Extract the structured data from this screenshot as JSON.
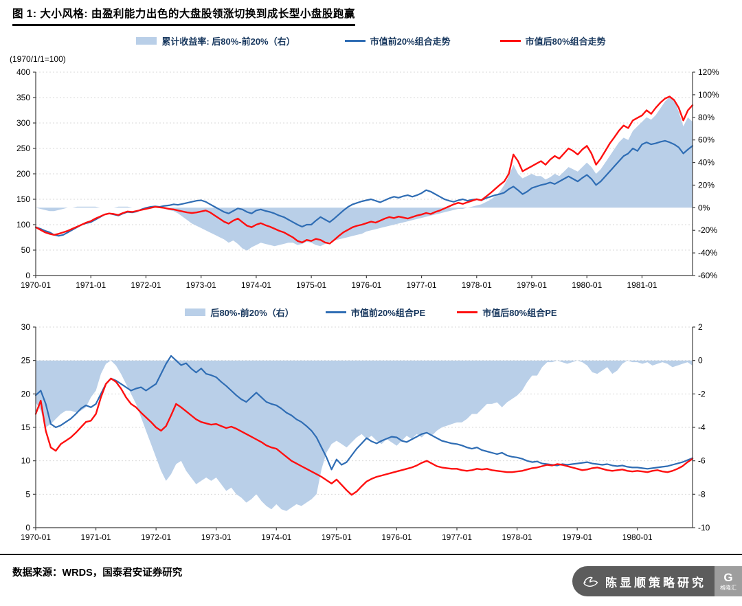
{
  "title": {
    "text": "图 1:  大小风格:  由盈利能力出色的大盘股领涨切换到成长型小盘股跑赢"
  },
  "footer": {
    "source": "数据来源：WRDS，国泰君安证券研究"
  },
  "watermark": {
    "text": "陈显顺策略研究",
    "logo": "格隆汇",
    "logo_initial": "G"
  },
  "colors": {
    "area": "#b9cfe8",
    "blue": "#2f6db4",
    "red": "#fe1010",
    "legend_text": "#17375e",
    "axis": "#3f3f3f",
    "grid": "#d9d9d9"
  },
  "chart_data": [
    {
      "type": "line+area",
      "axis_note": "(1970/1/1=100)",
      "x_unit": "month",
      "x_labels": [
        "1970-01",
        "1971-01",
        "1972-01",
        "1973-01",
        "1974-01",
        "1975-01",
        "1976-01",
        "1977-01",
        "1978-01",
        "1979-01",
        "1980-01",
        "1981-01"
      ],
      "left_axis": {
        "min": 0,
        "max": 400,
        "step": 50
      },
      "right_axis": {
        "min": -60,
        "max": 120,
        "step": 20,
        "suffix": "%"
      },
      "legend": [
        {
          "swatch": "area",
          "color_key": "area",
          "label": "累计收益率: 后80%-前20%（右）"
        },
        {
          "swatch": "line",
          "color_key": "blue",
          "label": "市值前20%组合走势"
        },
        {
          "swatch": "line",
          "color_key": "red",
          "label": "市值后80%组合走势"
        }
      ],
      "series": [
        {
          "name": "累计收益率: 后80%-前20%（右）",
          "axis": "right",
          "kind": "area",
          "color_key": "area",
          "values": [
            0,
            -1,
            -2,
            -3,
            -3,
            -2,
            -1,
            0,
            0,
            1,
            1,
            1,
            1,
            1,
            0,
            0,
            0,
            0,
            1,
            1,
            1,
            0,
            0,
            0,
            0,
            0,
            0,
            0,
            -1,
            -2,
            -3,
            -5,
            -8,
            -11,
            -14,
            -16,
            -18,
            -20,
            -22,
            -24,
            -26,
            -28,
            -31,
            -29,
            -32,
            -36,
            -38,
            -35,
            -33,
            -31,
            -32,
            -33,
            -34,
            -33,
            -32,
            -31,
            -31,
            -33,
            -32,
            -30,
            -31,
            -33,
            -34,
            -32,
            -30,
            -29,
            -28,
            -27,
            -26,
            -25,
            -24,
            -23,
            -21,
            -20,
            -19,
            -18,
            -17,
            -16,
            -15,
            -14,
            -13,
            -12,
            -11,
            -10,
            -9,
            -8,
            -7,
            -6,
            -5,
            -4,
            -3,
            -2,
            -1,
            -1,
            0,
            1,
            2,
            3,
            5,
            7,
            10,
            14,
            20,
            28,
            38,
            30,
            26,
            28,
            30,
            28,
            28,
            25,
            27,
            30,
            28,
            32,
            36,
            34,
            32,
            36,
            40,
            36,
            30,
            34,
            40,
            46,
            52,
            58,
            62,
            60,
            68,
            72,
            76,
            80,
            78,
            82,
            88,
            94,
            98,
            96,
            85,
            72,
            80,
            76
          ]
        },
        {
          "name": "市值前20%组合走势",
          "axis": "left",
          "kind": "line",
          "color_key": "blue",
          "values": [
            95,
            92,
            88,
            85,
            80,
            78,
            80,
            85,
            90,
            95,
            100,
            103,
            105,
            110,
            115,
            120,
            122,
            120,
            118,
            122,
            125,
            124,
            126,
            130,
            133,
            135,
            136,
            135,
            137,
            138,
            140,
            139,
            141,
            143,
            145,
            147,
            148,
            145,
            140,
            135,
            130,
            125,
            122,
            127,
            132,
            130,
            125,
            122,
            128,
            130,
            127,
            125,
            122,
            118,
            115,
            110,
            105,
            100,
            96,
            100,
            100,
            108,
            115,
            110,
            105,
            112,
            120,
            128,
            135,
            140,
            143,
            146,
            148,
            150,
            147,
            144,
            148,
            152,
            155,
            153,
            156,
            158,
            155,
            158,
            162,
            168,
            165,
            160,
            155,
            150,
            147,
            145,
            148,
            150,
            147,
            149,
            150,
            148,
            152,
            155,
            158,
            160,
            163,
            170,
            175,
            168,
            160,
            165,
            172,
            175,
            178,
            180,
            183,
            180,
            185,
            190,
            195,
            190,
            185,
            192,
            198,
            190,
            178,
            185,
            195,
            205,
            215,
            225,
            235,
            240,
            250,
            245,
            258,
            262,
            258,
            260,
            263,
            265,
            262,
            258,
            252,
            240,
            248,
            255
          ]
        },
        {
          "name": "市值后80%组合走势",
          "axis": "left",
          "kind": "line",
          "color_key": "red",
          "values": [
            95,
            90,
            85,
            82,
            80,
            82,
            85,
            88,
            92,
            96,
            100,
            104,
            107,
            112,
            116,
            120,
            122,
            121,
            119,
            123,
            126,
            125,
            127,
            129,
            131,
            133,
            135,
            134,
            133,
            131,
            130,
            128,
            126,
            124,
            123,
            124,
            126,
            128,
            124,
            118,
            112,
            106,
            102,
            108,
            112,
            105,
            98,
            95,
            100,
            103,
            99,
            96,
            92,
            88,
            85,
            80,
            75,
            68,
            65,
            70,
            68,
            72,
            70,
            65,
            63,
            70,
            78,
            85,
            90,
            95,
            98,
            100,
            103,
            106,
            104,
            108,
            112,
            115,
            113,
            116,
            114,
            112,
            115,
            118,
            120,
            123,
            121,
            125,
            128,
            132,
            136,
            140,
            143,
            141,
            144,
            147,
            150,
            148,
            155,
            162,
            170,
            178,
            185,
            200,
            238,
            225,
            205,
            210,
            215,
            220,
            225,
            218,
            228,
            235,
            230,
            240,
            250,
            245,
            238,
            248,
            255,
            240,
            218,
            230,
            245,
            260,
            272,
            285,
            295,
            290,
            305,
            310,
            315,
            325,
            318,
            330,
            340,
            348,
            352,
            345,
            330,
            305,
            325,
            335
          ]
        }
      ]
    },
    {
      "type": "line+area",
      "axis_note": "",
      "x_unit": "month",
      "x_labels": [
        "1970-01",
        "1971-01",
        "1972-01",
        "1973-01",
        "1974-01",
        "1975-01",
        "1976-01",
        "1977-01",
        "1978-01",
        "1979-01",
        "1980-01"
      ],
      "left_axis": {
        "min": 0,
        "max": 30,
        "step": 5
      },
      "right_axis": {
        "min": -10,
        "max": 2,
        "step": 2,
        "suffix": ""
      },
      "legend": [
        {
          "swatch": "area",
          "color_key": "area",
          "label": "后80%-前20%（右）"
        },
        {
          "swatch": "line",
          "color_key": "blue",
          "label": "市值前20%组合PE"
        },
        {
          "swatch": "line",
          "color_key": "red",
          "label": "市值后80%组合PE"
        }
      ],
      "series": [
        {
          "name": "后80%-前20%（右）",
          "axis": "right",
          "kind": "area",
          "color_key": "area",
          "values": [
            -2.5,
            -3.0,
            -4.0,
            -3.8,
            -3.5,
            -3.2,
            -3.0,
            -3.0,
            -3.1,
            -3.0,
            -2.8,
            -2.2,
            -1.8,
            -0.8,
            -0.2,
            0.0,
            -0.3,
            -0.8,
            -1.4,
            -2.0,
            -2.6,
            -3.4,
            -4.2,
            -5.0,
            -5.8,
            -6.6,
            -7.2,
            -6.8,
            -6.2,
            -6.0,
            -6.6,
            -7.0,
            -7.4,
            -7.2,
            -7.0,
            -7.2,
            -7.0,
            -7.4,
            -7.8,
            -7.6,
            -8.0,
            -8.2,
            -8.5,
            -8.3,
            -8.0,
            -8.4,
            -8.7,
            -8.9,
            -8.6,
            -8.9,
            -9.0,
            -8.8,
            -8.6,
            -8.7,
            -8.5,
            -8.3,
            -8.0,
            -6.5,
            -5.5,
            -5.0,
            -4.8,
            -5.0,
            -5.2,
            -4.9,
            -4.6,
            -4.4,
            -4.7,
            -4.5,
            -4.8,
            -5.0,
            -4.7,
            -4.9,
            -5.1,
            -4.8,
            -4.5,
            -4.7,
            -4.4,
            -4.6,
            -4.3,
            -4.5,
            -4.2,
            -4.0,
            -3.9,
            -3.8,
            -3.7,
            -3.7,
            -3.5,
            -3.2,
            -3.2,
            -2.9,
            -2.6,
            -2.6,
            -2.5,
            -2.8,
            -2.5,
            -2.3,
            -2.1,
            -1.8,
            -1.3,
            -0.9,
            -0.9,
            -0.4,
            -0.1,
            -0.1,
            0.0,
            -0.1,
            -0.2,
            -0.1,
            0.0,
            -0.1,
            -0.3,
            -0.7,
            -0.8,
            -0.6,
            -0.4,
            -0.8,
            -0.6,
            -0.2,
            0.0,
            -0.1,
            -0.1,
            -0.2,
            -0.1,
            -0.3,
            -0.2,
            -0.1,
            -0.2,
            -0.4,
            -0.3,
            -0.2,
            -0.1,
            -0.3
          ]
        },
        {
          "name": "市值前20%组合PE",
          "axis": "left",
          "kind": "line",
          "color_key": "blue",
          "values": [
            19.8,
            20.5,
            18.5,
            15.5,
            15.0,
            15.3,
            15.8,
            16.3,
            17.0,
            17.8,
            18.3,
            18.0,
            18.5,
            20.0,
            21.5,
            22.3,
            22.0,
            21.5,
            21.0,
            20.5,
            20.8,
            21.0,
            20.5,
            21.0,
            21.5,
            23.0,
            24.5,
            25.7,
            25.0,
            24.3,
            24.6,
            23.8,
            23.2,
            23.8,
            23.0,
            22.8,
            22.5,
            21.8,
            21.2,
            20.5,
            19.8,
            19.2,
            18.8,
            19.5,
            20.2,
            19.5,
            18.8,
            18.5,
            18.3,
            17.8,
            17.2,
            16.8,
            16.2,
            15.8,
            15.2,
            14.5,
            13.5,
            12.0,
            10.5,
            8.7,
            10.2,
            9.4,
            9.8,
            10.8,
            11.8,
            12.6,
            13.4,
            12.9,
            12.6,
            13.0,
            13.3,
            13.6,
            13.5,
            13.0,
            12.8,
            13.2,
            13.6,
            14.0,
            14.2,
            13.8,
            13.4,
            13.0,
            12.8,
            12.6,
            12.5,
            12.3,
            12.0,
            11.8,
            12.0,
            11.6,
            11.4,
            11.2,
            11.0,
            11.2,
            10.8,
            10.6,
            10.5,
            10.3,
            10.0,
            9.8,
            9.9,
            9.6,
            9.5,
            9.4,
            9.3,
            9.5,
            9.4,
            9.5,
            9.6,
            9.7,
            9.8,
            9.6,
            9.5,
            9.4,
            9.5,
            9.3,
            9.2,
            9.3,
            9.1,
            9.0,
            9.0,
            8.9,
            8.8,
            8.9,
            9.0,
            9.1,
            9.2,
            9.4,
            9.6,
            9.8,
            10.1,
            10.4
          ]
        },
        {
          "name": "市值后80%组合PE",
          "axis": "left",
          "kind": "line",
          "color_key": "red",
          "values": [
            17.0,
            19.0,
            14.5,
            12.0,
            11.5,
            12.5,
            13.0,
            13.5,
            14.2,
            15.0,
            15.8,
            16.0,
            17.0,
            19.5,
            21.5,
            22.3,
            21.8,
            20.8,
            19.5,
            18.5,
            18.0,
            17.2,
            16.5,
            15.8,
            15.0,
            14.5,
            15.2,
            16.8,
            18.5,
            18.0,
            17.4,
            16.8,
            16.2,
            15.8,
            15.6,
            15.4,
            15.5,
            15.2,
            14.9,
            15.1,
            14.8,
            14.4,
            14.0,
            13.6,
            13.2,
            12.8,
            12.3,
            12.0,
            11.8,
            11.2,
            10.6,
            10.0,
            9.6,
            9.2,
            8.8,
            8.4,
            8.0,
            7.6,
            7.1,
            6.6,
            7.2,
            6.4,
            5.6,
            4.9,
            5.4,
            6.2,
            6.9,
            7.3,
            7.6,
            7.8,
            8.0,
            8.2,
            8.4,
            8.6,
            8.8,
            9.0,
            9.3,
            9.7,
            10.0,
            9.6,
            9.2,
            9.0,
            8.9,
            8.8,
            8.8,
            8.6,
            8.5,
            8.6,
            8.8,
            8.7,
            8.8,
            8.6,
            8.5,
            8.4,
            8.3,
            8.3,
            8.4,
            8.5,
            8.7,
            8.9,
            9.0,
            9.2,
            9.4,
            9.3,
            9.5,
            9.4,
            9.2,
            9.0,
            8.8,
            8.6,
            8.7,
            8.9,
            9.0,
            8.8,
            8.6,
            8.5,
            8.6,
            8.7,
            8.5,
            8.4,
            8.5,
            8.4,
            8.3,
            8.5,
            8.6,
            8.4,
            8.3,
            8.5,
            8.8,
            9.2,
            9.8,
            10.3
          ]
        }
      ]
    }
  ]
}
